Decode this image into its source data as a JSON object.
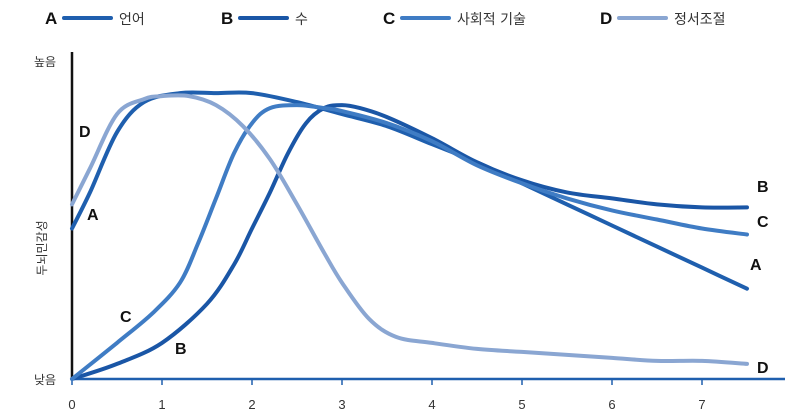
{
  "chart_data": {
    "type": "line",
    "ylabel": "두뇌민감성",
    "y_top_label": "높음",
    "y_bottom_label": "낮음",
    "xlim": [
      0,
      7.9
    ],
    "ylim": [
      0,
      100
    ],
    "x_ticks": [
      0,
      1,
      2,
      3,
      4,
      5,
      6,
      7
    ],
    "grid": false,
    "legend_position": "top",
    "series": [
      {
        "key": "A",
        "name": "언어",
        "color": "#1f5fae",
        "x": [
          0,
          0.2,
          0.5,
          0.8,
          1.2,
          1.6,
          2.0,
          2.5,
          3.0,
          3.5,
          4.0,
          4.5,
          5.0,
          5.5,
          6.0,
          6.5,
          7.0,
          7.5
        ],
        "y": [
          50,
          62,
          82,
          92,
          95,
          95,
          95,
          92,
          88,
          84,
          78,
          72,
          65,
          58,
          51,
          44,
          37,
          30
        ]
      },
      {
        "key": "B",
        "name": "수",
        "color": "#1a56a6",
        "x": [
          0,
          0.5,
          1.0,
          1.5,
          1.8,
          2.0,
          2.2,
          2.4,
          2.6,
          2.8,
          3.0,
          3.2,
          3.5,
          4.0,
          4.5,
          5.0,
          5.5,
          6.0,
          6.5,
          7.0,
          7.5
        ],
        "y": [
          0,
          5,
          12,
          25,
          38,
          50,
          62,
          75,
          85,
          90,
          91,
          90,
          87,
          80,
          72,
          66,
          62,
          60,
          58,
          57,
          57
        ]
      },
      {
        "key": "C",
        "name": "사회적 기술",
        "color": "#3f7cc4",
        "x": [
          0,
          0.5,
          0.9,
          1.2,
          1.4,
          1.6,
          1.8,
          2.0,
          2.2,
          2.5,
          2.8,
          3.0,
          3.5,
          4.0,
          4.5,
          5.0,
          5.5,
          6.0,
          6.5,
          7.0,
          7.5
        ],
        "y": [
          0,
          12,
          22,
          32,
          45,
          60,
          75,
          85,
          90,
          91,
          90,
          89,
          85,
          79,
          71,
          65,
          60,
          56,
          53,
          50,
          48
        ]
      },
      {
        "key": "D",
        "name": "정서조절",
        "color": "#8aa6d2",
        "x": [
          0,
          0.2,
          0.5,
          0.8,
          1.0,
          1.3,
          1.6,
          1.9,
          2.2,
          2.5,
          2.8,
          3.0,
          3.3,
          3.6,
          4.0,
          4.5,
          5.0,
          5.5,
          6.0,
          6.5,
          7.0,
          7.5
        ],
        "y": [
          58,
          70,
          88,
          93,
          94,
          94,
          91,
          84,
          73,
          58,
          42,
          32,
          20,
          14,
          12,
          10,
          9,
          8,
          7,
          6,
          6,
          5
        ]
      }
    ],
    "end_labels": [
      "B",
      "C",
      "A",
      "D"
    ],
    "start_labels": [
      "D",
      "A",
      "C",
      "B"
    ]
  }
}
